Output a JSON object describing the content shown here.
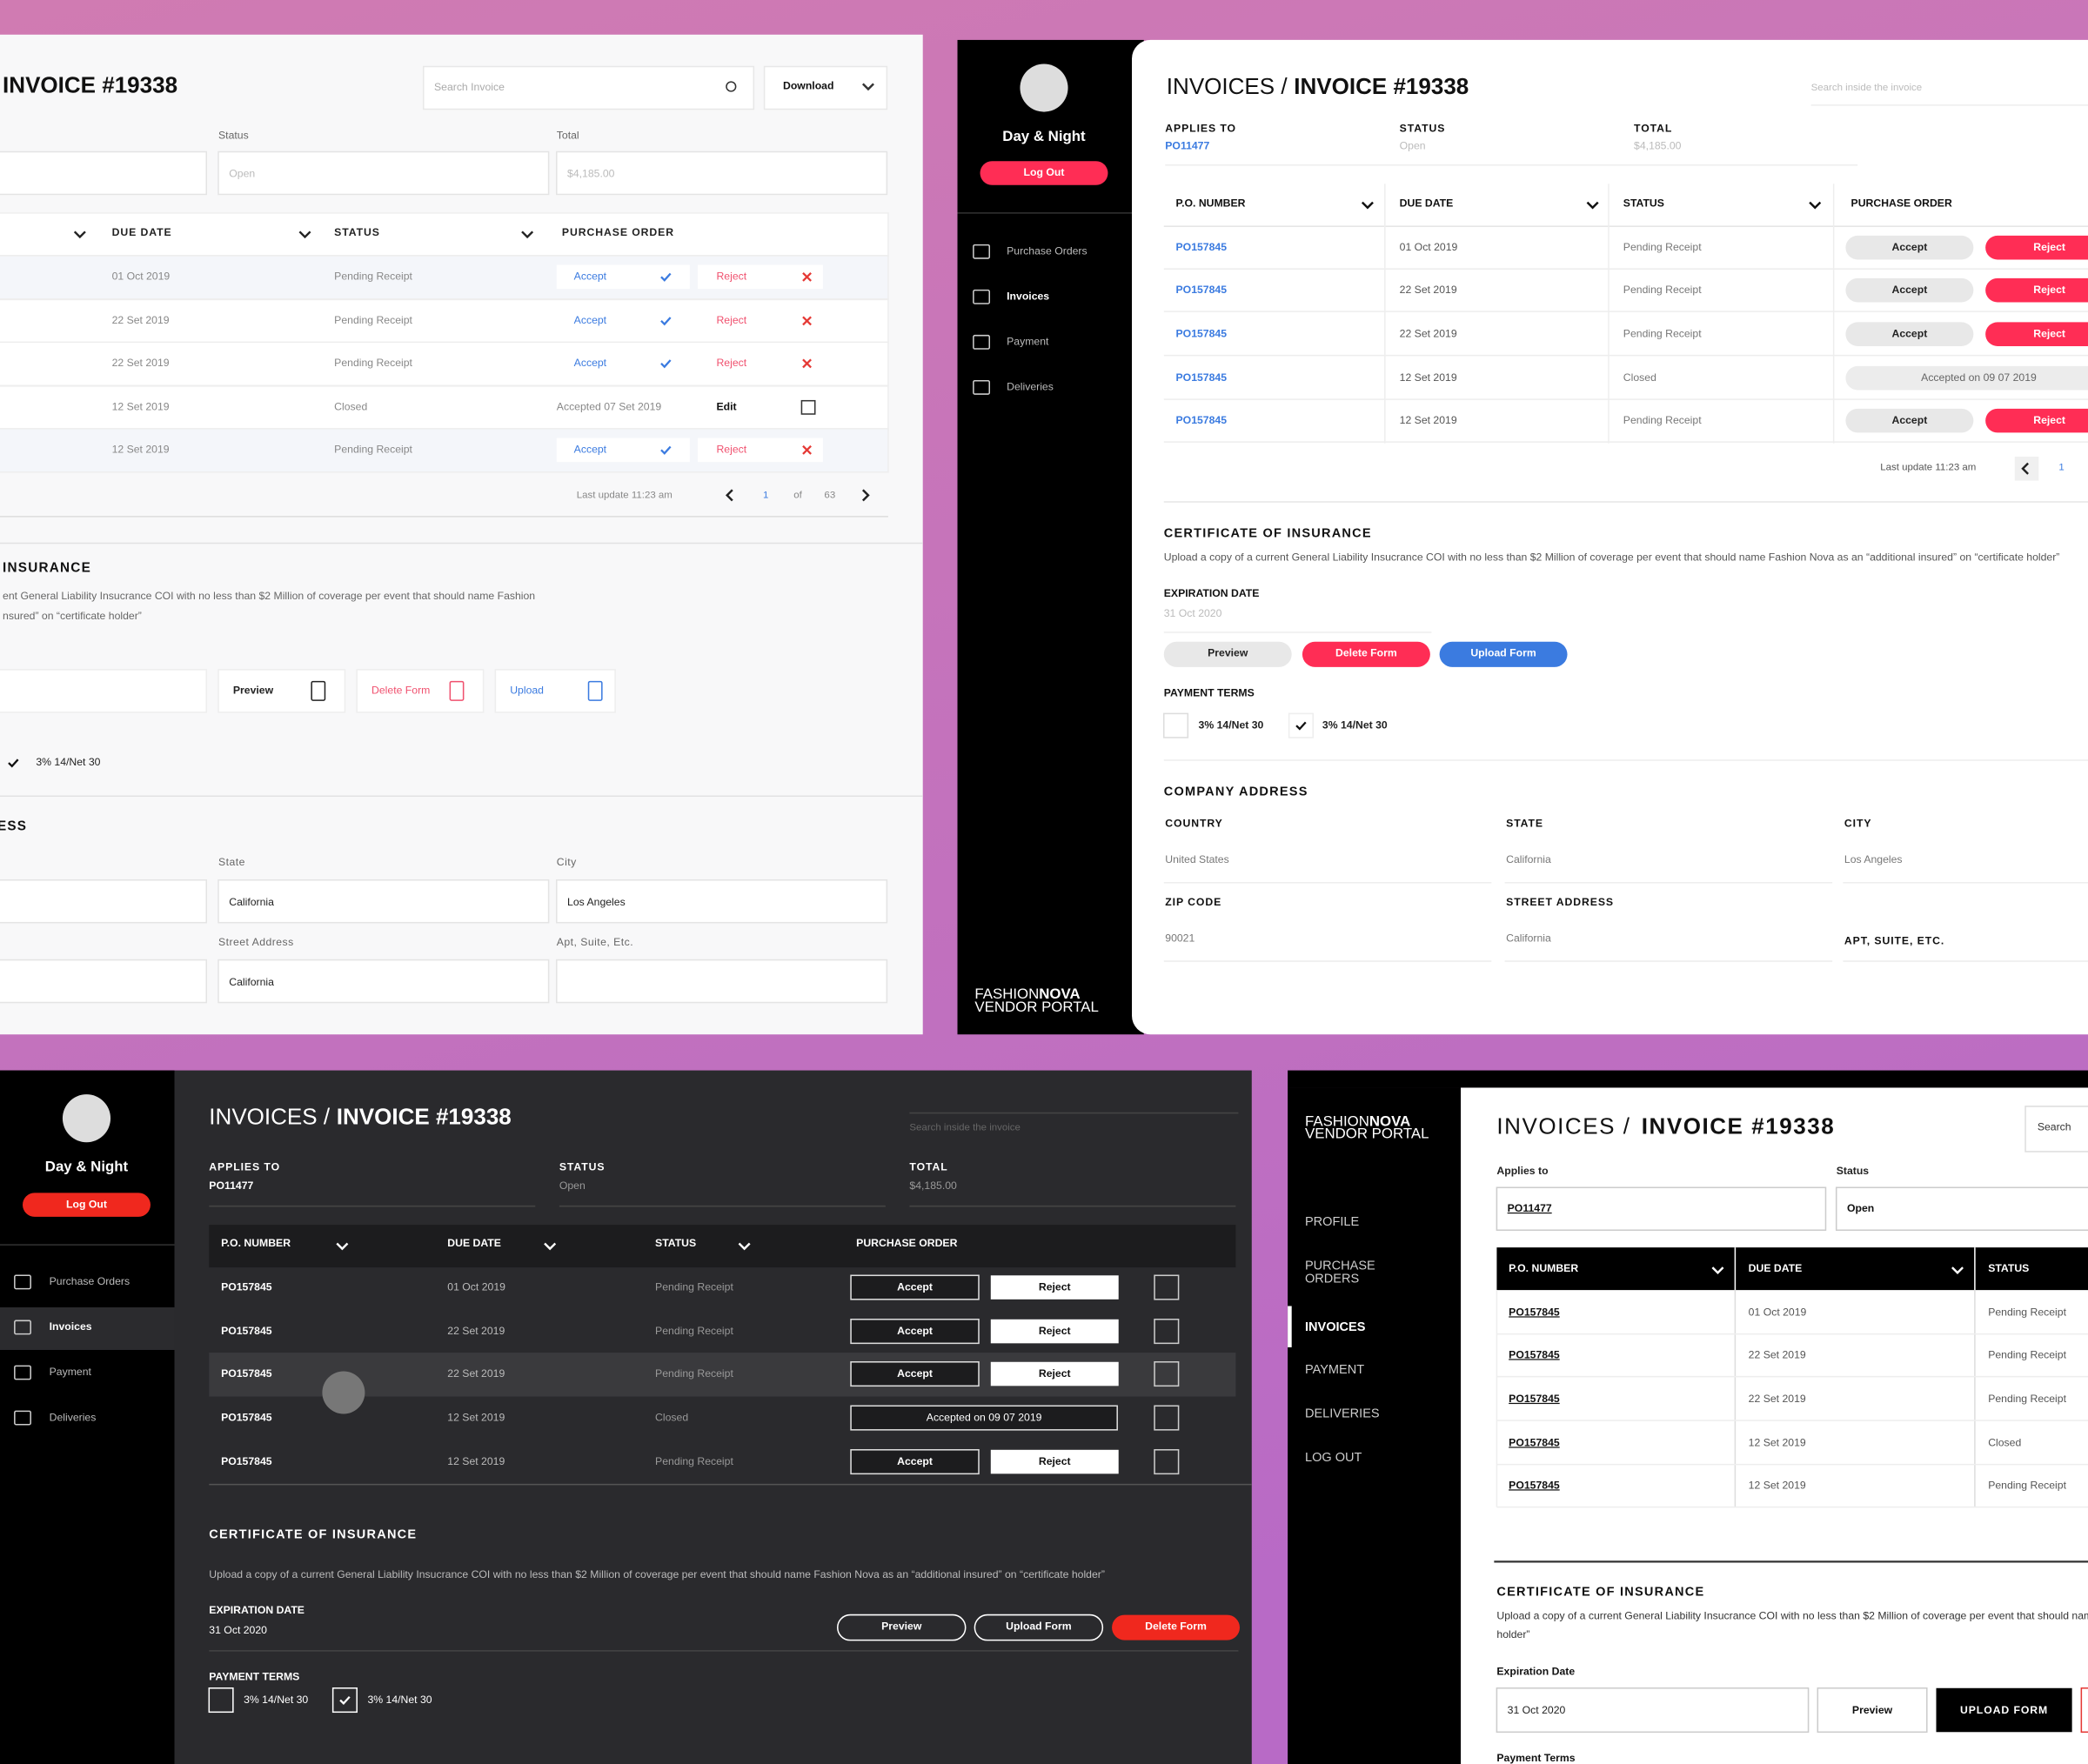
{
  "panel_light": {
    "title": "INVOICE #19338",
    "search": "Search Invoice",
    "download": "Download",
    "fields": [
      {
        "label": "Status",
        "value": "Open"
      },
      {
        "label": "Total",
        "value": "$4,185.00"
      }
    ],
    "table": {
      "headers": [
        "DUE DATE",
        "STATUS",
        "PURCHASE ORDER"
      ],
      "rows": [
        {
          "due": "01 Oct 2019",
          "status": "Pending Receipt"
        },
        {
          "due": "22 Set 2019",
          "status": "Pending Receipt"
        },
        {
          "due": "22 Set 2019",
          "status": "Pending Receipt"
        },
        {
          "due": "12 Set 2019",
          "status": "Closed",
          "accepted": "Accepted  07 Set 2019",
          "edit": "Edit"
        },
        {
          "due": "12 Set 2019",
          "status": "Pending Receipt"
        }
      ],
      "accept": "Accept",
      "reject": "Reject",
      "last_update": "Last update 11:23 am",
      "page": 1,
      "of": "of",
      "pages": 63
    },
    "insurance": {
      "title": "INSURANCE",
      "lines": [
        "ent General Liability Insucrance COI with no less than $2 Million of coverage per event that should name Fashion",
        "nsured” on “certificate holder”"
      ],
      "buttons": [
        "Preview",
        "Delete Form",
        "Upload"
      ]
    },
    "payment_term": "3% 14/Net 30",
    "address": {
      "title": "ESS",
      "fields": [
        {
          "label": "State",
          "value": "California"
        },
        {
          "label": "City",
          "value": "Los Angeles"
        },
        {
          "label": "Street Address",
          "value": "California"
        }
      ],
      "apt_label": "Apt, Suite, Etc."
    }
  },
  "panel_white": {
    "sidebar": {
      "user": "Day & Night",
      "logout": "Log Out",
      "nav": [
        "Purchase Orders",
        "Invoices",
        "Payment",
        "Deliveries"
      ],
      "logo": [
        "FASHION",
        "NOVA",
        "VENDOR PORTAL"
      ]
    },
    "crumb": "INVOICES /",
    "title": "INVOICE #19338",
    "search": "Search inside the invoice",
    "fields": [
      {
        "label": "APPLIES TO",
        "value": "PO11477"
      },
      {
        "label": "STATUS",
        "value": "Open"
      },
      {
        "label": "TOTAL",
        "value": "$4,185.00"
      }
    ],
    "table": {
      "headers": [
        "P.O. NUMBER",
        "DUE DATE",
        "STATUS",
        "PURCHASE ORDER"
      ],
      "rows": [
        {
          "po": "PO157845",
          "due": "01 Oct 2019",
          "status": "Pending Receipt"
        },
        {
          "po": "PO157845",
          "due": "22 Set 2019",
          "status": "Pending Receipt"
        },
        {
          "po": "PO157845",
          "due": "22 Set 2019",
          "status": "Pending Receipt"
        },
        {
          "po": "PO157845",
          "due": "12 Set 2019",
          "status": "Closed",
          "accepted": "Accepted on 09 07 2019"
        },
        {
          "po": "PO157845",
          "due": "12 Set 2019",
          "status": "Pending Receipt"
        }
      ],
      "accept": "Accept",
      "reject": "Reject",
      "last_update": "Last update 11:23 am",
      "page": 1
    },
    "certificate": {
      "title": "CERTIFICATE OF INSURANCE",
      "text": "Upload a copy of a current General Liability Insucrance COI with no less than $2 Million of coverage per event that should name Fashion Nova as an “additional insured” on “certificate holder”",
      "expiration_label": "EXPIRATION DATE",
      "expiration": "31 Oct 2020",
      "buttons": [
        "Preview",
        "Delete Form",
        "Upload Form"
      ]
    },
    "payment": {
      "title": "PAYMENT TERMS",
      "terms": [
        "3% 14/Net 30",
        "3% 14/Net 30"
      ]
    },
    "address": {
      "title": "COMPANY ADDRESS",
      "fields": [
        {
          "label": "COUNTRY",
          "value": "United States"
        },
        {
          "label": "STATE",
          "value": "California"
        },
        {
          "label": "CITY",
          "value": "Los Angeles"
        },
        {
          "label": "ZIP CODE",
          "value": "90021"
        },
        {
          "label": "STREET ADDRESS",
          "value": "California"
        }
      ],
      "apt_label": "APT, SUITE, ETC."
    }
  },
  "panel_dark": {
    "sidebar": {
      "user": "Day & Night",
      "logout": "Log Out",
      "nav": [
        "Purchase Orders",
        "Invoices",
        "Payment",
        "Deliveries"
      ]
    },
    "crumb": "INVOICES /",
    "title": "INVOICE #19338",
    "search": "Search inside the invoice",
    "fields": [
      {
        "label": "APPLIES TO",
        "value": "PO11477"
      },
      {
        "label": "STATUS",
        "value": "Open"
      },
      {
        "label": "TOTAL",
        "value": "$4,185.00"
      }
    ],
    "table": {
      "headers": [
        "P.O. NUMBER",
        "DUE DATE",
        "STATUS",
        "PURCHASE ORDER"
      ],
      "rows": [
        {
          "po": "PO157845",
          "due": "01 Oct 2019",
          "status": "Pending Receipt"
        },
        {
          "po": "PO157845",
          "due": "22 Set 2019",
          "status": "Pending Receipt"
        },
        {
          "po": "PO157845",
          "due": "22 Set 2019",
          "status": "Pending Receipt"
        },
        {
          "po": "PO157845",
          "due": "12 Set 2019",
          "status": "Closed",
          "accepted": "Accepted on 09 07 2019"
        },
        {
          "po": "PO157845",
          "due": "12 Set 2019",
          "status": "Pending Receipt"
        }
      ],
      "accept": "Accept",
      "reject": "Reject"
    },
    "certificate": {
      "title": "CERTIFICATE OF INSURANCE",
      "text": "Upload a copy of a current General Liability Insucrance COI with no less than $2 Million of coverage per event that should name Fashion Nova as an “additional insured” on “certificate holder”",
      "expiration_label": "EXPIRATION DATE",
      "expiration": "31 Oct 2020",
      "buttons": [
        "Preview",
        "Upload Form",
        "Delete Form"
      ]
    },
    "payment": {
      "title": "PAYMENT TERMS",
      "terms": [
        "3% 14/Net 30",
        "3% 14/Net 30"
      ]
    }
  },
  "panel_black": {
    "logo": [
      "FASHION",
      "NOVA",
      "VENDOR PORTAL"
    ],
    "nav": [
      [
        "PROFILE"
      ],
      [
        "PURCHASE",
        "ORDERS"
      ],
      [
        "INVOICES"
      ],
      [
        "PAYMENT"
      ],
      [
        "DELIVERIES"
      ],
      [
        "LOG OUT"
      ]
    ],
    "crumb": "INVOICES /",
    "title": "INVOICE #19338",
    "search": "Search",
    "fields": [
      {
        "label": "Applies to",
        "value": "PO11477"
      },
      {
        "label": "Status",
        "value": "Open"
      }
    ],
    "table": {
      "headers": [
        "P.O. NUMBER",
        "DUE DATE",
        "STATUS"
      ],
      "rows": [
        {
          "po": "PO157845",
          "due": "01 Oct 2019",
          "status": "Pending Receipt"
        },
        {
          "po": "PO157845",
          "due": "22 Set 2019",
          "status": "Pending Receipt"
        },
        {
          "po": "PO157845",
          "due": "22 Set 2019",
          "status": "Pending Receipt"
        },
        {
          "po": "PO157845",
          "due": "12 Set 2019",
          "status": "Closed"
        },
        {
          "po": "PO157845",
          "due": "12 Set 2019",
          "status": "Pending Receipt"
        }
      ]
    },
    "certificate": {
      "title": "CERTIFICATE OF INSURANCE",
      "lines": [
        "Upload a copy of a current General Liability Insucrance COI with no less than $2 Million of coverage per event that should name Fashion Nova as an “additional insured” on “certificate",
        "holder”"
      ],
      "expiration_label": "Expiration Date",
      "expiration": "31 Oct 2020",
      "buttons": [
        "Preview",
        "UPLOAD FORM"
      ]
    },
    "payment_title": "Payment Terms"
  }
}
